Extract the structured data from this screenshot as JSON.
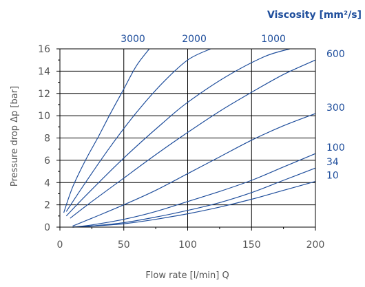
{
  "chart_data": {
    "type": "line",
    "title": "",
    "xlabel": "Flow rate [l/min] Q",
    "ylabel": "Pressure drop Δp [bar]",
    "xlim": [
      0,
      200
    ],
    "ylim": [
      0,
      16
    ],
    "x_ticks": [
      "0",
      "50",
      "100",
      "150",
      "200"
    ],
    "y_ticks": [
      "0",
      "2",
      "4",
      "6",
      "8",
      "10",
      "12",
      "14",
      "16"
    ],
    "grid": true,
    "legend_title": "Viscosity [mm²/s]",
    "series_color": "#1f4e9c",
    "series": [
      {
        "name": "3000",
        "x": [
          3,
          10,
          20,
          30,
          40,
          50,
          60,
          70
        ],
        "y": [
          1.3,
          3.6,
          6.0,
          8.1,
          10.3,
          12.4,
          14.5,
          16.0
        ]
      },
      {
        "name": "2000",
        "x": [
          5,
          20,
          40,
          60,
          80,
          100,
          118
        ],
        "y": [
          1.4,
          4.0,
          7.3,
          10.3,
          12.9,
          15.0,
          16.0
        ]
      },
      {
        "name": "1000",
        "x": [
          5,
          20,
          50,
          80,
          100,
          130,
          160,
          180
        ],
        "y": [
          1.0,
          2.8,
          6.2,
          9.3,
          11.2,
          13.5,
          15.3,
          16.0
        ]
      },
      {
        "name": "600",
        "x": [
          8,
          25,
          50,
          75,
          100,
          125,
          150,
          175,
          200
        ],
        "y": [
          0.8,
          2.3,
          4.4,
          6.5,
          8.5,
          10.4,
          12.1,
          13.7,
          15.0
        ]
      },
      {
        "name": "300",
        "x": [
          10,
          25,
          50,
          75,
          100,
          125,
          150,
          175,
          200
        ],
        "y": [
          0.1,
          0.8,
          2.0,
          3.3,
          4.8,
          6.3,
          7.8,
          9.1,
          10.2
        ]
      },
      {
        "name": "100",
        "x": [
          10,
          25,
          50,
          75,
          100,
          125,
          150,
          175,
          200
        ],
        "y": [
          0.0,
          0.2,
          0.7,
          1.4,
          2.3,
          3.2,
          4.2,
          5.4,
          6.6
        ]
      },
      {
        "name": "34",
        "x": [
          10,
          25,
          50,
          75,
          100,
          125,
          150,
          175,
          200
        ],
        "y": [
          0.0,
          0.1,
          0.4,
          0.9,
          1.5,
          2.2,
          3.1,
          4.2,
          5.3
        ]
      },
      {
        "name": "10",
        "x": [
          10,
          25,
          50,
          75,
          100,
          125,
          150,
          175,
          200
        ],
        "y": [
          0.0,
          0.1,
          0.3,
          0.7,
          1.2,
          1.8,
          2.5,
          3.3,
          4.1
        ]
      }
    ]
  }
}
